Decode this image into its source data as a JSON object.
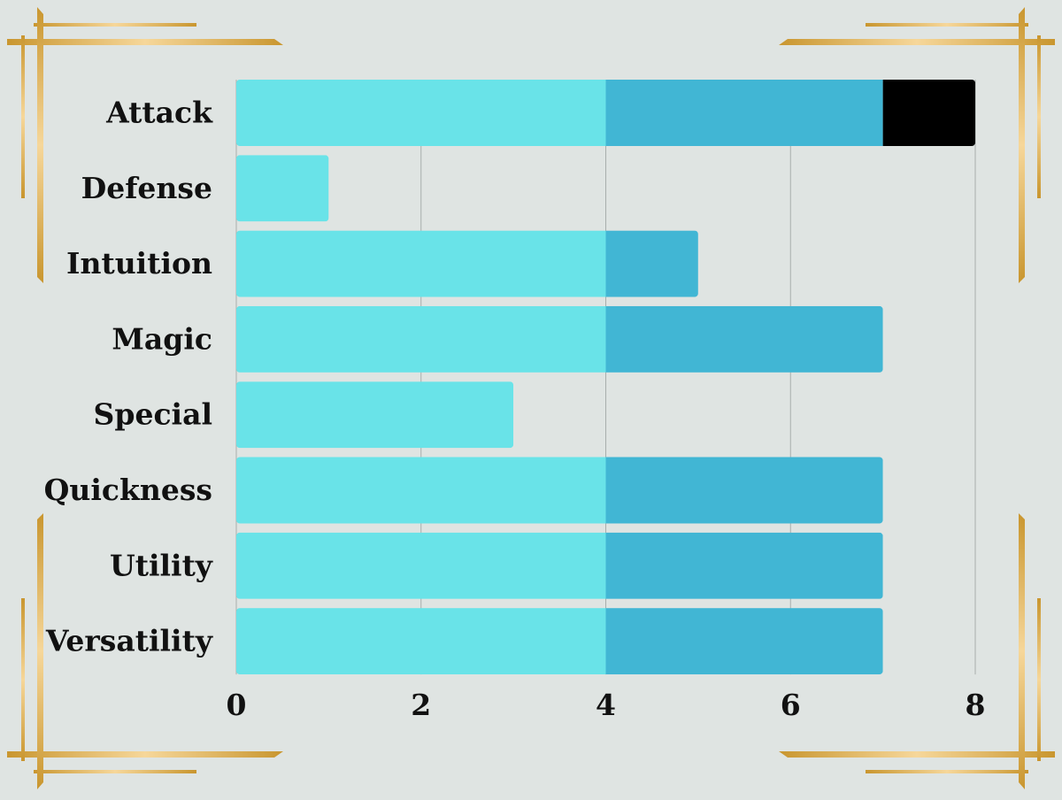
{
  "colors": {
    "background": "#dfe4e2",
    "segment_1": "#69e3e8",
    "segment_2": "#41b6d4",
    "segment_3": "#000000",
    "gridline": "#a8aeac",
    "gold_dark": "#c9962f",
    "gold_light": "#f6d79a"
  },
  "decoration": {
    "corner_frames": [
      "top-left",
      "top-right",
      "bottom-left",
      "bottom-right"
    ],
    "style": "gold double-line art-deco corner frames"
  },
  "chart_data": {
    "type": "bar",
    "orientation": "horizontal",
    "stacked": true,
    "categories": [
      "Attack",
      "Defense",
      "Intuition",
      "Magic",
      "Special",
      "Quickness",
      "Utility",
      "Versatility"
    ],
    "series": [
      {
        "values": [
          4,
          1,
          4,
          4,
          3,
          4,
          4,
          4
        ],
        "color": "#69e3e8"
      },
      {
        "values": [
          3,
          0,
          1,
          3,
          0,
          3,
          3,
          3
        ],
        "color": "#41b6d4"
      },
      {
        "values": [
          1,
          0,
          0,
          0,
          0,
          0,
          0,
          0
        ],
        "color": "#000000"
      }
    ],
    "xlim": [
      0,
      8
    ],
    "xticks": [
      "0",
      "2",
      "4",
      "6",
      "8"
    ],
    "grid": true,
    "legend": "none",
    "title": "",
    "xlabel": "",
    "ylabel": ""
  }
}
